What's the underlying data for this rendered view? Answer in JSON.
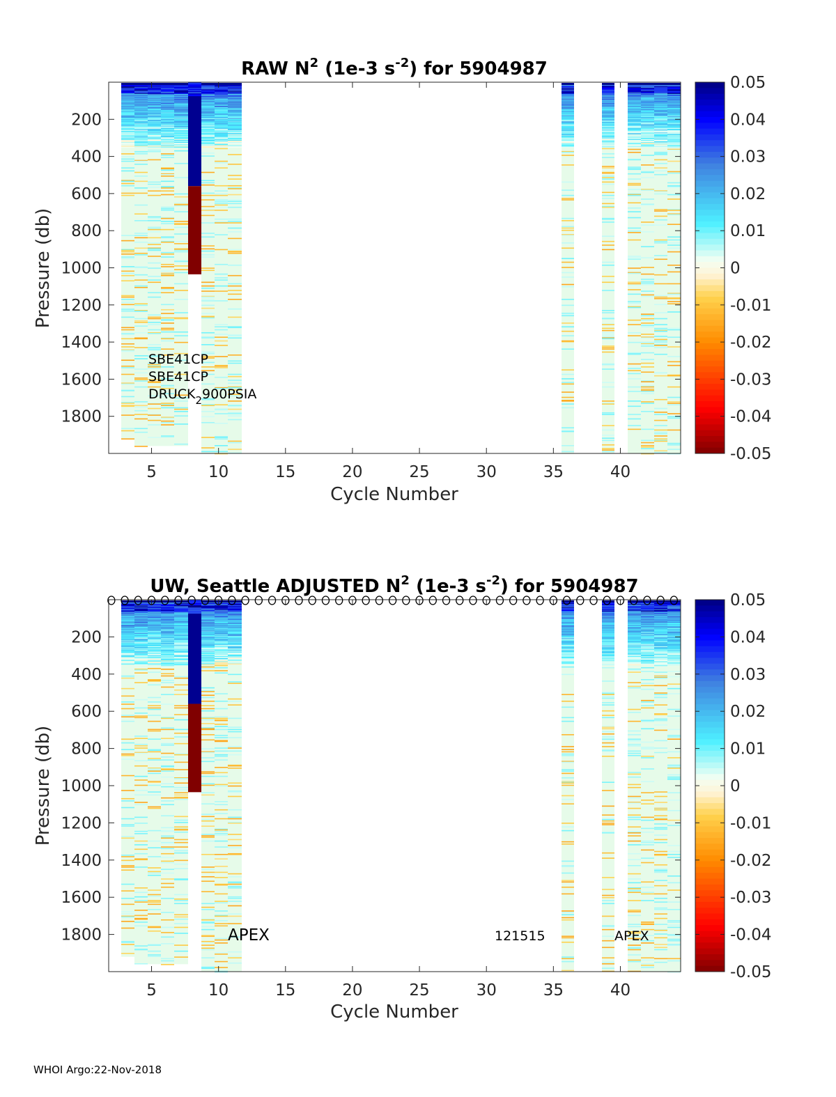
{
  "footer": "WHOI Argo:22-Nov-2018",
  "chart_data": [
    {
      "type": "heatmap",
      "title_main": "RAW N",
      "title_sup": "2",
      "title_mid": " (1e-3 s",
      "title_sup2": "-2",
      "title_end": ") for 5904987",
      "xlabel": "Cycle Number",
      "ylabel": "Pressure (db)",
      "xlim": [
        1.8,
        44.5
      ],
      "ylim": [
        0,
        2000
      ],
      "xticks": [
        "5",
        "10",
        "15",
        "20",
        "25",
        "30",
        "35",
        "40"
      ],
      "yticks": [
        "200",
        "400",
        "600",
        "800",
        "1000",
        "1200",
        "1400",
        "1600",
        "1800"
      ],
      "colorbar_limits": [
        -0.05,
        0.05
      ],
      "colorbar_ticks": [
        "0.05",
        "0.04",
        "0.03",
        "0.02",
        "0.01",
        "0",
        "-0.01",
        "-0.02",
        "-0.03",
        "-0.04",
        "-0.05"
      ],
      "profiles": [
        {
          "cycle": 2,
          "max_pressure": 1920
        },
        {
          "cycle": 3,
          "max_pressure": 1960
        },
        {
          "cycle": 4,
          "max_pressure": 1960
        },
        {
          "cycle": 5,
          "max_pressure": 1960
        },
        {
          "cycle": 6,
          "max_pressure": 1960
        },
        {
          "cycle": 7,
          "max_pressure": 1035,
          "anomaly": true
        },
        {
          "cycle": 8,
          "max_pressure": 2000
        },
        {
          "cycle": 9,
          "max_pressure": 2000
        },
        {
          "cycle": 10,
          "max_pressure": 2000
        },
        {
          "cycle": 35,
          "max_pressure": 2000
        },
        {
          "cycle": 38,
          "max_pressure": 2000
        },
        {
          "cycle": 40,
          "max_pressure": 2000
        },
        {
          "cycle": 41,
          "max_pressure": 2000
        },
        {
          "cycle": 42,
          "max_pressure": 2000
        },
        {
          "cycle": 43,
          "max_pressure": 2000
        }
      ],
      "annotations": {
        "line1": "SBE41CP",
        "line2": "SBE41CP",
        "line3_a": "DRUCK",
        "line3_sub": "2",
        "line3_b": "900PSIA"
      }
    },
    {
      "type": "heatmap",
      "title_main": "UW, Seattle  ADJUSTED N",
      "title_sup": "2",
      "title_mid": " (1e-3 s",
      "title_sup2": "-2",
      "title_end": ") for 5904987",
      "xlabel": "Cycle Number",
      "ylabel": "Pressure (db)",
      "xlim": [
        1.8,
        44.5
      ],
      "ylim": [
        0,
        2000
      ],
      "xticks": [
        "5",
        "10",
        "15",
        "20",
        "25",
        "30",
        "35",
        "40"
      ],
      "yticks": [
        "200",
        "400",
        "600",
        "800",
        "1000",
        "1200",
        "1400",
        "1600",
        "1800"
      ],
      "colorbar_limits": [
        -0.05,
        0.05
      ],
      "colorbar_ticks": [
        "0.05",
        "0.04",
        "0.03",
        "0.02",
        "0.01",
        "0",
        "-0.01",
        "-0.02",
        "-0.03",
        "-0.04",
        "-0.05"
      ],
      "marker_cycles": [
        2,
        43
      ],
      "profiles": [
        {
          "cycle": 2,
          "max_pressure": 1920
        },
        {
          "cycle": 3,
          "max_pressure": 1960
        },
        {
          "cycle": 4,
          "max_pressure": 1960
        },
        {
          "cycle": 5,
          "max_pressure": 1960
        },
        {
          "cycle": 6,
          "max_pressure": 1960
        },
        {
          "cycle": 7,
          "max_pressure": 1035,
          "anomaly": true
        },
        {
          "cycle": 8,
          "max_pressure": 2000
        },
        {
          "cycle": 9,
          "max_pressure": 2000
        },
        {
          "cycle": 10,
          "max_pressure": 2000
        },
        {
          "cycle": 35,
          "max_pressure": 2000
        },
        {
          "cycle": 38,
          "max_pressure": 2000
        },
        {
          "cycle": 40,
          "max_pressure": 2000
        },
        {
          "cycle": 41,
          "max_pressure": 2000
        },
        {
          "cycle": 42,
          "max_pressure": 2000
        },
        {
          "cycle": 43,
          "max_pressure": 2000
        }
      ],
      "annotations": {
        "apex_left": "APEX",
        "serial": "121515",
        "apex_right": "APEX"
      }
    }
  ]
}
